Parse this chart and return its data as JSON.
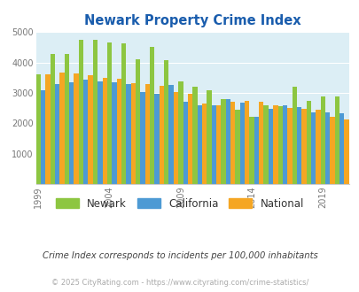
{
  "title": "Newark Property Crime Index",
  "years": [
    1999,
    2000,
    2001,
    2002,
    2003,
    2004,
    2005,
    2006,
    2007,
    2008,
    2009,
    2010,
    2011,
    2012,
    2013,
    2014,
    2015,
    2016,
    2017,
    2018,
    2019,
    2020
  ],
  "newark": [
    3600,
    4280,
    4280,
    4760,
    4760,
    4650,
    4620,
    4100,
    4500,
    4080,
    3380,
    3200,
    3100,
    2800,
    2450,
    2200,
    2600,
    2550,
    3200,
    2740,
    2880,
    2880
  ],
  "california": [
    3100,
    3280,
    3340,
    3440,
    3380,
    3340,
    3300,
    3040,
    2960,
    3250,
    2720,
    2600,
    2580,
    2780,
    2680,
    2200,
    2460,
    2580,
    2530,
    2370,
    2350,
    2330
  ],
  "national": [
    3600,
    3660,
    3640,
    3580,
    3500,
    3460,
    3330,
    3290,
    3220,
    3040,
    2960,
    2640,
    2600,
    2700,
    2730,
    2700,
    2600,
    2500,
    2460,
    2440,
    2210,
    2120
  ],
  "colors": {
    "newark": "#8dc641",
    "california": "#4d9ad4",
    "national": "#f5a623"
  },
  "ylabel_ticks": [
    0,
    1000,
    2000,
    3000,
    4000,
    5000
  ],
  "bg_color": "#dceef5",
  "subtitle": "Crime Index corresponds to incidents per 100,000 inhabitants",
  "footer": "© 2025 CityRating.com - https://www.cityrating.com/crime-statistics/",
  "title_color": "#1a5dad",
  "subtitle_color": "#444444",
  "footer_color": "#aaaaaa",
  "tick_years": [
    1999,
    2004,
    2009,
    2014,
    2019
  ]
}
